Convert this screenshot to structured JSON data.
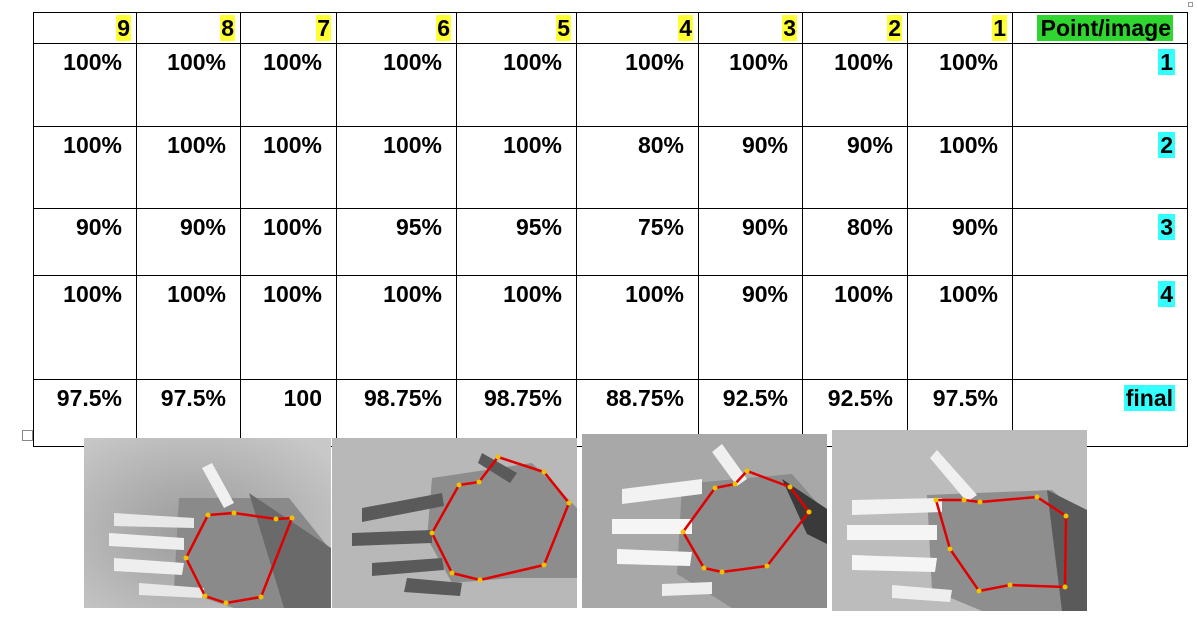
{
  "table": {
    "header": [
      "9",
      "8",
      "7",
      "6",
      "5",
      "4",
      "3",
      "2",
      "1",
      "Point/image"
    ],
    "rows": [
      {
        "label": "1",
        "cells": [
          "100%",
          "100%",
          "100%",
          "100%",
          "100%",
          "100%",
          "100%",
          "100%",
          "100%"
        ]
      },
      {
        "label": "2",
        "cells": [
          "100%",
          "100%",
          "100%",
          "100%",
          "100%",
          "80%",
          "90%",
          "90%",
          "100%"
        ]
      },
      {
        "label": "3",
        "cells": [
          "90%",
          "90%",
          "100%",
          "95%",
          "95%",
          "75%",
          "90%",
          "80%",
          "90%"
        ]
      },
      {
        "label": "4",
        "cells": [
          "100%",
          "100%",
          "100%",
          "100%",
          "100%",
          "100%",
          "90%",
          "100%",
          "100%"
        ]
      },
      {
        "label": "final",
        "cells": [
          "97.5%",
          "97.5%",
          "100",
          "98.75%",
          "98.75%",
          "88.75%",
          "92.5%",
          "92.5%",
          "97.5%"
        ]
      }
    ]
  },
  "colors": {
    "column_number_highlight": "#ffff33",
    "header_label_highlight": "#2fd62f",
    "row_label_highlight": "#33ffff",
    "polygon_line": "#e00000",
    "polygon_points": "#f2c200"
  },
  "images": [
    {
      "subject": "hand-image-1"
    },
    {
      "subject": "hand-image-2"
    },
    {
      "subject": "hand-image-3"
    },
    {
      "subject": "hand-image-4"
    }
  ]
}
